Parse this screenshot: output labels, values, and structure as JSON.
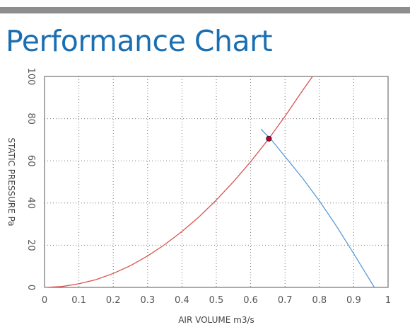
{
  "title": "Performance Chart",
  "colors": {
    "top_bar": "#8e8e8e",
    "title": "#1a6fb3",
    "system_curve": "#d9534f",
    "fan_curve": "#5b9bd5",
    "operating_point": "#cc0000",
    "grid": "#777777"
  },
  "chart_data": {
    "type": "line",
    "title": "",
    "xlabel": "AIR VOLUME m3/s",
    "ylabel": "STATIC PRESSURE Pa",
    "xlim": [
      0,
      1
    ],
    "ylim": [
      0,
      100
    ],
    "x_ticks": [
      "0",
      "0.1",
      "0.2",
      "0.3",
      "0.4",
      "0.5",
      "0.6",
      "0.7",
      "0.8",
      "0.9",
      "1"
    ],
    "y_ticks": [
      "0",
      "20",
      "40",
      "60",
      "80",
      "100"
    ],
    "grid": true,
    "legend": "none",
    "series": [
      {
        "color": "#d9534f",
        "x": [
          0,
          0.05,
          0.1,
          0.15,
          0.2,
          0.25,
          0.3,
          0.35,
          0.4,
          0.45,
          0.5,
          0.55,
          0.6,
          0.65,
          0.7,
          0.75,
          0.78
        ],
        "y": [
          0,
          0.4,
          1.7,
          3.7,
          6.6,
          10.3,
          14.9,
          20.3,
          26.5,
          33.5,
          41.4,
          50.1,
          59.6,
          69.9,
          81.1,
          93.1,
          100
        ]
      },
      {
        "color": "#5b9bd5",
        "x": [
          0.63,
          0.66,
          0.7,
          0.75,
          0.8,
          0.85,
          0.9,
          0.93,
          0.96
        ],
        "y": [
          75,
          70,
          62,
          52,
          41,
          29,
          16,
          8,
          0
        ]
      }
    ],
    "points": [
      {
        "x": 0.653,
        "y": 70.5,
        "color": "#cc0000"
      }
    ]
  }
}
